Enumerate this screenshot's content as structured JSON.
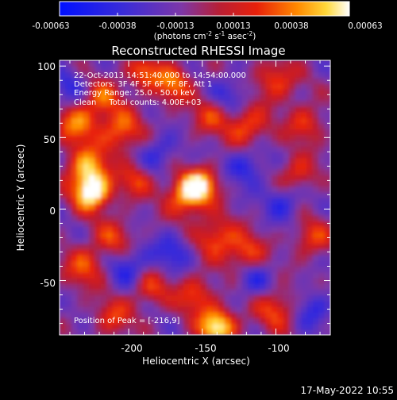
{
  "chart_data": {
    "type": "heatmap",
    "title": "Reconstructed RHESSI Image",
    "xlabel": "Heliocentric X (arcsec)",
    "ylabel": "Heliocentric Y (arcsec)",
    "xlim": [
      -247,
      -63
    ],
    "ylim": [
      -88,
      104
    ],
    "xticks": [
      -200,
      -150,
      -100
    ],
    "yticks": [
      -50,
      0,
      50,
      100
    ],
    "annotations": [
      "22-Oct-2013 14:51:40.000 to 14:54:00.000",
      "Detectors: 3F 4F 5F 6F 7F 8F, Att 1",
      "Energy Range: 25.0 - 50.0 keV",
      "Clean     Total counts: 4.00E+03",
      "Position of Peak = [-216,9]"
    ],
    "peak_position": [
      -216,
      9
    ],
    "colorbar": {
      "ticks": [
        "-0.00063",
        "-0.00038",
        "-0.00013",
        "0.00013",
        "0.00038",
        "0.00063"
      ],
      "min": -0.00063,
      "max": 0.00063,
      "label_text": "(photons cm",
      "label_sup1": "-2",
      "label_s": " s",
      "label_sup2": "-1",
      "label_asec": " asec",
      "label_sup3": "-2",
      "label_end": ")"
    },
    "grid": false,
    "blobs": [
      {
        "x": -225,
        "y": 12,
        "a": 1.0,
        "r": 9
      },
      {
        "x": -228,
        "y": 30,
        "a": 0.7,
        "r": 10
      },
      {
        "x": -235,
        "y": 60,
        "a": 0.6,
        "r": 10
      },
      {
        "x": -205,
        "y": 55,
        "a": 0.6,
        "r": 10
      },
      {
        "x": -218,
        "y": 78,
        "a": 0.5,
        "r": 9
      },
      {
        "x": -160,
        "y": 10,
        "a": 0.8,
        "r": 10
      },
      {
        "x": -150,
        "y": 18,
        "a": 0.6,
        "r": 8
      },
      {
        "x": -170,
        "y": 88,
        "a": 0.6,
        "r": 9
      },
      {
        "x": -190,
        "y": 96,
        "a": 0.55,
        "r": 8
      },
      {
        "x": -120,
        "y": 58,
        "a": 0.55,
        "r": 10
      },
      {
        "x": -100,
        "y": 90,
        "a": 0.5,
        "r": 10
      },
      {
        "x": -80,
        "y": 60,
        "a": 0.45,
        "r": 9
      },
      {
        "x": -140,
        "y": -20,
        "a": 0.55,
        "r": 10
      },
      {
        "x": -120,
        "y": -30,
        "a": 0.5,
        "r": 9
      },
      {
        "x": -100,
        "y": -70,
        "a": 0.5,
        "r": 10
      },
      {
        "x": -230,
        "y": -40,
        "a": 0.5,
        "r": 10
      },
      {
        "x": -210,
        "y": -20,
        "a": 0.45,
        "r": 9
      },
      {
        "x": -185,
        "y": -55,
        "a": 0.45,
        "r": 9
      },
      {
        "x": -140,
        "y": -82,
        "a": 0.95,
        "r": 9
      },
      {
        "x": -155,
        "y": -60,
        "a": 0.5,
        "r": 9
      },
      {
        "x": -75,
        "y": -20,
        "a": 0.45,
        "r": 9
      },
      {
        "x": -85,
        "y": 25,
        "a": 0.45,
        "r": 9
      },
      {
        "x": -195,
        "y": 20,
        "a": 0.45,
        "r": 8
      },
      {
        "x": -145,
        "y": 65,
        "a": 0.4,
        "r": 9
      },
      {
        "x": -210,
        "y": -75,
        "a": 0.45,
        "r": 9
      }
    ],
    "dark_spots": [
      {
        "x": -120,
        "y": 30,
        "a": 0.5,
        "r": 9
      },
      {
        "x": -200,
        "y": -40,
        "a": 0.5,
        "r": 10
      },
      {
        "x": -180,
        "y": 40,
        "a": 0.4,
        "r": 9
      },
      {
        "x": -95,
        "y": 5,
        "a": 0.45,
        "r": 9
      },
      {
        "x": -170,
        "y": -30,
        "a": 0.45,
        "r": 9
      },
      {
        "x": -115,
        "y": -50,
        "a": 0.4,
        "r": 9
      },
      {
        "x": -75,
        "y": -70,
        "a": 0.45,
        "r": 9
      },
      {
        "x": -240,
        "y": 85,
        "a": 0.4,
        "r": 9
      },
      {
        "x": -130,
        "y": 80,
        "a": 0.4,
        "r": 9
      }
    ]
  },
  "footer_timestamp": "17-May-2022 10:55"
}
